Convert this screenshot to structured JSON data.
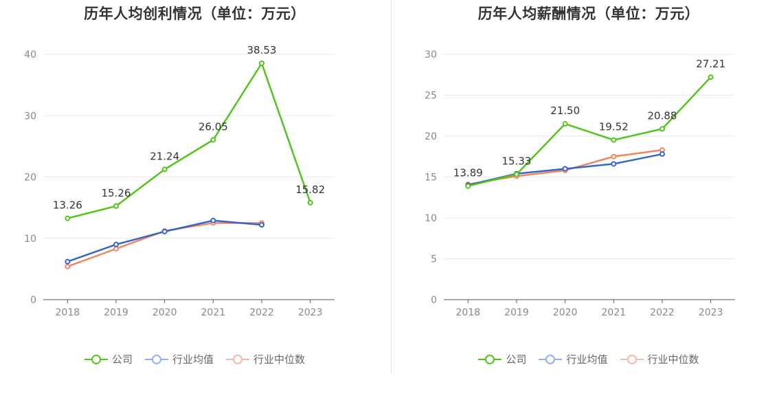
{
  "colors": {
    "company": "#52c41a",
    "avg": "#3366cc",
    "median": "#f0855f",
    "avg_legend": "#8fb0f0",
    "median_legend": "#f7b7a0"
  },
  "legend": {
    "company": "公司",
    "avg": "行业均值",
    "median": "行业中位数"
  },
  "chart_data": [
    {
      "type": "line",
      "title": "历年人均创利情况（单位：万元）",
      "categories": [
        "2018",
        "2019",
        "2020",
        "2021",
        "2022",
        "2023"
      ],
      "ylim": [
        0,
        40
      ],
      "yticks": [
        0,
        10,
        20,
        30,
        40
      ],
      "grid": true,
      "legend_position": "bottom",
      "series": [
        {
          "name": "公司",
          "key": "company",
          "values": [
            13.26,
            15.26,
            21.24,
            26.05,
            38.53,
            15.82
          ],
          "labels": [
            "13.26",
            "15.26",
            "21.24",
            "26.05",
            "38.53",
            "15.82"
          ]
        },
        {
          "name": "行业均值",
          "key": "avg",
          "values": [
            6.2,
            9.0,
            11.1,
            12.9,
            12.2,
            null
          ]
        },
        {
          "name": "行业中位数",
          "key": "median",
          "values": [
            5.4,
            8.3,
            11.2,
            12.5,
            12.5,
            null
          ]
        }
      ]
    },
    {
      "type": "line",
      "title": "历年人均薪酬情况（单位：万元）",
      "categories": [
        "2018",
        "2019",
        "2020",
        "2021",
        "2022",
        "2023"
      ],
      "ylim": [
        0,
        30
      ],
      "yticks": [
        0,
        5,
        10,
        15,
        20,
        25,
        30
      ],
      "grid": true,
      "legend_position": "bottom",
      "series": [
        {
          "name": "公司",
          "key": "company",
          "values": [
            13.89,
            15.33,
            21.5,
            19.52,
            20.88,
            27.21
          ],
          "labels": [
            "13.89",
            "15.33",
            "21.50",
            "19.52",
            "20.88",
            "27.21"
          ]
        },
        {
          "name": "行业均值",
          "key": "avg",
          "values": [
            14.0,
            15.4,
            16.0,
            16.6,
            17.8,
            null
          ]
        },
        {
          "name": "行业中位数",
          "key": "median",
          "values": [
            14.1,
            15.1,
            15.8,
            17.5,
            18.3,
            null
          ]
        }
      ]
    }
  ]
}
